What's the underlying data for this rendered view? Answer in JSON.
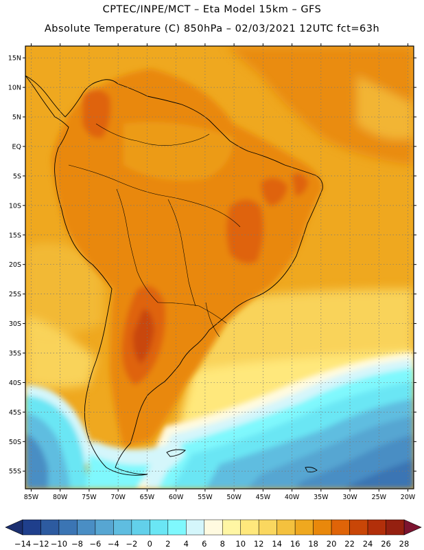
{
  "header": {
    "line1": "CPTEC/INPE/MCT –  Eta Model 15km – GFS",
    "line2": "Absolute Temperature (C) 850hPa – 02/03/2021 12UTC fct=63h"
  },
  "map": {
    "lat_labels": [
      "15N",
      "10N",
      "5N",
      "EQ",
      "5S",
      "10S",
      "15S",
      "20S",
      "25S",
      "30S",
      "35S",
      "40S",
      "45S",
      "50S",
      "55S"
    ],
    "lon_labels": [
      "85W",
      "80W",
      "75W",
      "70W",
      "65W",
      "60W",
      "55W",
      "50W",
      "45W",
      "40W",
      "35W",
      "30W",
      "25W",
      "20W"
    ],
    "extent": {
      "lon_min": -86,
      "lon_max": -19,
      "lat_min": -58,
      "lat_max": 17
    }
  },
  "colorbar": {
    "labels": [
      "-14",
      "-12",
      "-10",
      "-8",
      "-6",
      "-4",
      "-2",
      "0",
      "2",
      "4",
      "6",
      "8",
      "10",
      "12",
      "14",
      "16",
      "18",
      "20",
      "22",
      "24",
      "26",
      "28"
    ],
    "colors": [
      "#1f3f8c",
      "#2d5ba0",
      "#3b75b4",
      "#4a8ec4",
      "#57a6d2",
      "#5fbde0",
      "#62d0ea",
      "#6ae6f4",
      "#7ff8fd",
      "#d4f6fb",
      "#fffae0",
      "#fff6a4",
      "#ffe87c",
      "#fad75f",
      "#f4c13e",
      "#efa81f",
      "#e9880b",
      "#df6408",
      "#c94607",
      "#b22f0a",
      "#952010"
    ],
    "low_end_color": "#1b2f70",
    "high_end_color": "#7c1430"
  }
}
